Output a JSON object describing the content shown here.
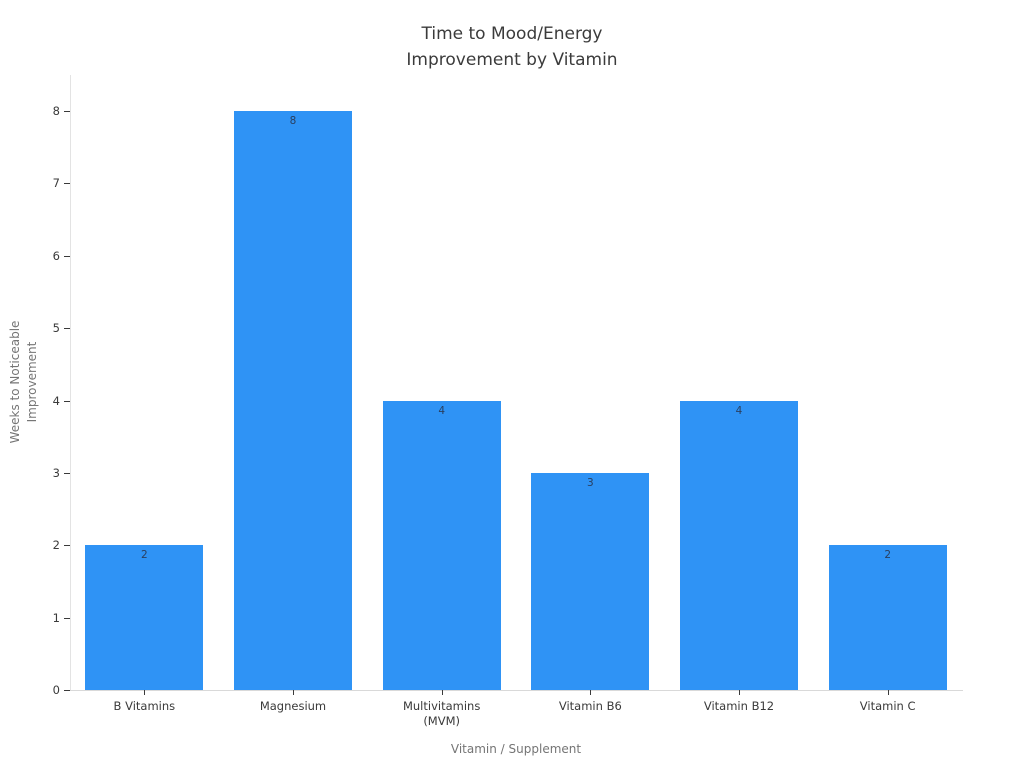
{
  "chart": {
    "title": "Time to Mood/Energy\nImprovement by Vitamin",
    "xlabel": "Vitamin / Supplement",
    "ylabel": "Weeks to Noticeable\nImprovement"
  },
  "chart_data": {
    "type": "bar",
    "title": "Time to Mood/Energy Improvement by Vitamin",
    "categories": [
      "B Vitamins",
      "Magnesium",
      "Multivitamins\n(MVM)",
      "Vitamin B6",
      "Vitamin B12",
      "Vitamin C"
    ],
    "values": [
      2,
      8,
      4,
      3,
      4,
      2
    ],
    "bar_labels": [
      "2",
      "8",
      "4",
      "3",
      "4",
      "2"
    ],
    "xlabel": "Vitamin / Supplement",
    "ylabel": "Weeks to Noticeable Improvement",
    "ylim": [
      0,
      8
    ],
    "yticks": [
      0,
      1,
      2,
      3,
      4,
      5,
      6,
      7,
      8
    ],
    "bar_color": "#2f93f5",
    "bar_label_color": "#2a3f5f",
    "axis_line_color": "#dddddd",
    "tick_color": "#3a3a3a",
    "grid": false,
    "legend": null,
    "background": "#ffffff"
  }
}
